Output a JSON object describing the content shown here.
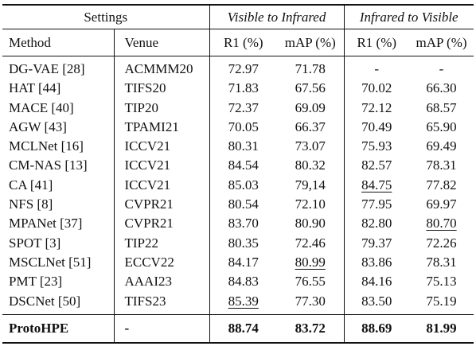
{
  "header": {
    "settings": "Settings",
    "group_v2i": "Visible to Infrared",
    "group_i2v": "Infrared to Visible",
    "col_method": "Method",
    "col_venue": "Venue",
    "col_r1_a": "R1 (%)",
    "col_map_a": "mAP (%)",
    "col_r1_b": "R1 (%)",
    "col_map_b": "mAP (%)"
  },
  "rows": [
    {
      "method": "DG-VAE [28]",
      "venue": "ACMMM20",
      "r1a": "72.97",
      "mapa": "71.78",
      "r1b": "-",
      "mapb": "-"
    },
    {
      "method": "HAT [44]",
      "venue": "TIFS20",
      "r1a": "71.83",
      "mapa": "67.56",
      "r1b": "70.02",
      "mapb": "66.30"
    },
    {
      "method": "MACE [40]",
      "venue": "TIP20",
      "r1a": "72.37",
      "mapa": "69.09",
      "r1b": "72.12",
      "mapb": "68.57"
    },
    {
      "method": "AGW [43]",
      "venue": "TPAMI21",
      "r1a": "70.05",
      "mapa": "66.37",
      "r1b": "70.49",
      "mapb": "65.90"
    },
    {
      "method": "MCLNet [16]",
      "venue": "ICCV21",
      "r1a": "80.31",
      "mapa": "73.07",
      "r1b": "75.93",
      "mapb": "69.49"
    },
    {
      "method": "CM-NAS [13]",
      "venue": "ICCV21",
      "r1a": "84.54",
      "mapa": "80.32",
      "r1b": "82.57",
      "mapb": "78.31"
    },
    {
      "method": "CA [41]",
      "venue": "ICCV21",
      "r1a": "85.03",
      "mapa": "79,14",
      "r1b": "84.75",
      "mapb": "77.82"
    },
    {
      "method": "NFS [8]",
      "venue": "CVPR21",
      "r1a": "80.54",
      "mapa": "72.10",
      "r1b": "77.95",
      "mapb": "69.97"
    },
    {
      "method": "MPANet [37]",
      "venue": "CVPR21",
      "r1a": "83.70",
      "mapa": "80.90",
      "r1b": "82.80",
      "mapb": "80.70"
    },
    {
      "method": "SPOT [3]",
      "venue": "TIP22",
      "r1a": "80.35",
      "mapa": "72.46",
      "r1b": "79.37",
      "mapb": "72.26"
    },
    {
      "method": "MSCLNet [51]",
      "venue": "ECCV22",
      "r1a": "84.17",
      "mapa": "80.99",
      "r1b": "83.86",
      "mapb": "78.31"
    },
    {
      "method": "PMT [23]",
      "venue": "AAAI23",
      "r1a": "84.83",
      "mapa": "76.55",
      "r1b": "84.16",
      "mapb": "75.13"
    },
    {
      "method": "DSCNet [50]",
      "venue": "TIFS23",
      "r1a": "85.39",
      "mapa": "77.30",
      "r1b": "83.50",
      "mapb": "75.19"
    }
  ],
  "final": {
    "method": "ProtoHPE",
    "venue": "-",
    "r1a": "88.74",
    "mapa": "83.72",
    "r1b": "88.69",
    "mapb": "81.99"
  }
}
